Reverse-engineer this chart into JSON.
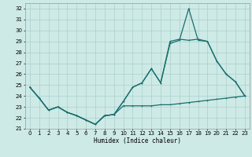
{
  "xlabel": "Humidex (Indice chaleur)",
  "xlim": [
    -0.5,
    23.5
  ],
  "ylim": [
    21,
    32.5
  ],
  "yticks": [
    21,
    22,
    23,
    24,
    25,
    26,
    27,
    28,
    29,
    30,
    31,
    32
  ],
  "xticks": [
    0,
    1,
    2,
    3,
    4,
    5,
    6,
    7,
    8,
    9,
    10,
    11,
    12,
    13,
    14,
    15,
    16,
    17,
    18,
    19,
    20,
    21,
    22,
    23
  ],
  "bg_color": "#ceeae6",
  "grid_color": "#aacfcb",
  "line_color": "#1a6e6e",
  "line1_x": [
    0,
    1,
    2,
    3,
    4,
    5,
    6,
    7,
    8,
    9,
    10,
    11,
    12,
    13,
    14,
    15,
    16,
    17,
    18,
    19,
    20,
    21,
    22,
    23
  ],
  "line1_y": [
    24.8,
    23.8,
    22.7,
    23.0,
    22.5,
    22.2,
    21.8,
    21.4,
    22.2,
    22.3,
    23.1,
    23.1,
    23.1,
    23.1,
    23.2,
    23.2,
    23.3,
    23.4,
    23.5,
    23.6,
    23.7,
    23.8,
    23.9,
    24.0
  ],
  "line2_x": [
    0,
    1,
    2,
    3,
    4,
    5,
    6,
    7,
    8,
    9,
    10,
    11,
    12,
    13,
    14,
    15,
    16,
    17,
    18,
    19,
    20,
    21,
    22,
    23
  ],
  "line2_y": [
    24.8,
    23.8,
    22.7,
    23.0,
    22.5,
    22.2,
    21.8,
    21.4,
    22.2,
    22.3,
    23.5,
    24.8,
    25.2,
    26.5,
    25.2,
    29.0,
    29.2,
    29.1,
    29.2,
    29.0,
    27.2,
    26.0,
    25.3,
    24.0
  ],
  "line3_x": [
    0,
    1,
    2,
    3,
    4,
    5,
    6,
    7,
    8,
    9,
    10,
    11,
    12,
    13,
    14,
    15,
    16,
    17,
    18,
    19,
    20,
    21,
    22,
    23
  ],
  "line3_y": [
    24.8,
    23.8,
    22.7,
    23.0,
    22.5,
    22.2,
    21.8,
    21.4,
    22.2,
    22.3,
    23.5,
    24.8,
    25.2,
    26.5,
    25.2,
    28.8,
    29.1,
    32.0,
    29.1,
    29.0,
    27.2,
    26.0,
    25.3,
    24.0
  ]
}
